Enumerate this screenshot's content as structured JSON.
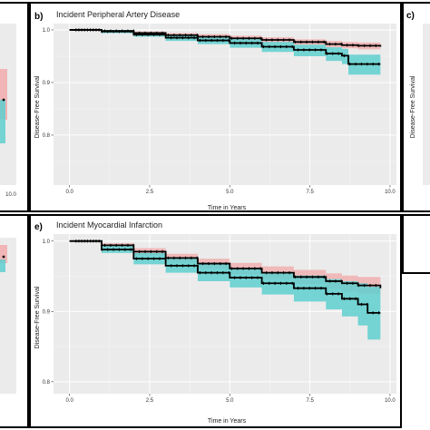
{
  "chart_data": [
    {
      "type": "line",
      "panel": "b)",
      "title": "Incident Peripheral Artery Disease",
      "xlabel": "Time in Years",
      "ylabel": "Disease-Free Survival",
      "xticks": [
        "0.0",
        "2.5",
        "5.0",
        "7.5",
        "10.0"
      ],
      "yticks": [
        "0.8",
        "0.9",
        "1.0"
      ],
      "xlim": [
        -0.5,
        10.2
      ],
      "ylim": [
        0.705,
        1.012
      ],
      "grid": true,
      "series": [
        {
          "color": "#000000",
          "band_color": "#f2a8a8",
          "x": [
            0.0,
            1.0,
            2.0,
            3.0,
            4.0,
            5.0,
            6.0,
            7.0,
            8.0,
            8.5,
            9.0,
            9.7
          ],
          "y": [
            1.0,
            0.998,
            0.994,
            0.99,
            0.987,
            0.984,
            0.981,
            0.977,
            0.973,
            0.971,
            0.97,
            0.968
          ],
          "lower": [
            1.0,
            0.996,
            0.991,
            0.986,
            0.982,
            0.979,
            0.976,
            0.972,
            0.967,
            0.965,
            0.963,
            0.96
          ],
          "upper": [
            1.0,
            1.0,
            0.997,
            0.994,
            0.992,
            0.989,
            0.986,
            0.982,
            0.979,
            0.977,
            0.976,
            0.975
          ]
        },
        {
          "color": "#000000",
          "band_color": "#5fcfcf",
          "x": [
            0.0,
            1.0,
            2.0,
            3.0,
            4.0,
            5.0,
            6.0,
            7.0,
            8.0,
            8.5,
            8.7,
            9.7
          ],
          "y": [
            1.0,
            0.997,
            0.991,
            0.985,
            0.98,
            0.975,
            0.968,
            0.962,
            0.955,
            0.951,
            0.935,
            0.935
          ],
          "lower": [
            1.0,
            0.994,
            0.987,
            0.979,
            0.973,
            0.966,
            0.958,
            0.95,
            0.941,
            0.935,
            0.915,
            0.91
          ],
          "upper": [
            1.0,
            1.0,
            0.995,
            0.99,
            0.986,
            0.983,
            0.977,
            0.972,
            0.967,
            0.964,
            0.953,
            0.955
          ]
        }
      ]
    },
    {
      "type": "line",
      "panel": "e)",
      "title": "Incident Myocardial Infarction",
      "xlabel": "Time in Years",
      "ylabel": "Disease-Free Survival",
      "xticks": [
        "0.0",
        "2.5",
        "5.0",
        "7.5",
        "10.0"
      ],
      "yticks": [
        "0.8",
        "0.9",
        "1.0"
      ],
      "xlim": [
        -0.5,
        10.2
      ],
      "ylim": [
        0.783,
        1.01
      ],
      "grid": true,
      "series": [
        {
          "color": "#000000",
          "band_color": "#f2a8a8",
          "x": [
            0.0,
            1.0,
            2.0,
            3.0,
            4.0,
            5.0,
            6.0,
            7.0,
            8.0,
            8.5,
            9.0,
            9.7
          ],
          "y": [
            1.0,
            0.994,
            0.985,
            0.976,
            0.968,
            0.961,
            0.955,
            0.949,
            0.943,
            0.94,
            0.937,
            0.933
          ],
          "lower": [
            1.0,
            0.991,
            0.98,
            0.97,
            0.961,
            0.953,
            0.946,
            0.939,
            0.932,
            0.928,
            0.925,
            0.92
          ],
          "upper": [
            1.0,
            0.997,
            0.99,
            0.982,
            0.975,
            0.969,
            0.964,
            0.959,
            0.954,
            0.951,
            0.949,
            0.946
          ]
        },
        {
          "color": "#000000",
          "band_color": "#5fcfcf",
          "x": [
            0.0,
            1.0,
            2.0,
            3.0,
            4.0,
            5.0,
            6.0,
            7.0,
            8.0,
            8.5,
            9.0,
            9.3,
            9.7
          ],
          "y": [
            1.0,
            0.988,
            0.975,
            0.965,
            0.955,
            0.948,
            0.94,
            0.933,
            0.925,
            0.918,
            0.91,
            0.898,
            0.898
          ],
          "lower": [
            1.0,
            0.983,
            0.967,
            0.955,
            0.943,
            0.934,
            0.924,
            0.914,
            0.903,
            0.893,
            0.88,
            0.86,
            0.858
          ],
          "upper": [
            1.0,
            0.993,
            0.983,
            0.975,
            0.967,
            0.961,
            0.955,
            0.951,
            0.946,
            0.943,
            0.94,
            0.935,
            0.935
          ]
        }
      ]
    },
    {
      "panel": "c)",
      "yticks": [],
      "ylabel": "Disease-Free Survival"
    }
  ]
}
